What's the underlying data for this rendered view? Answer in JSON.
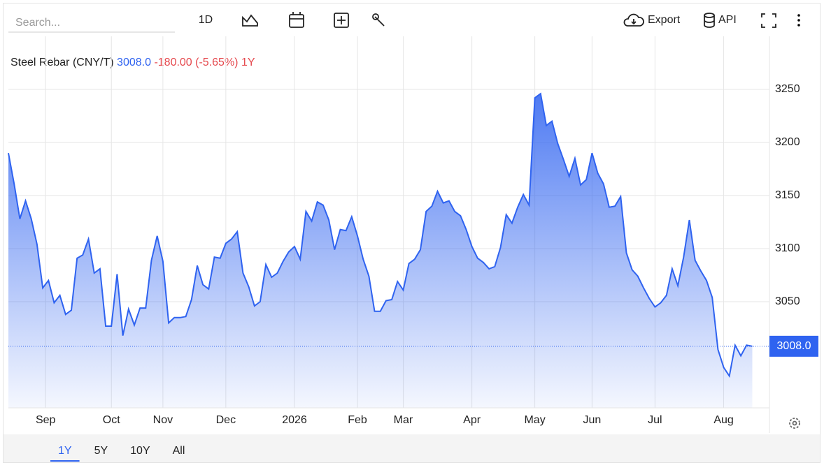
{
  "toolbar": {
    "search_placeholder": "Search...",
    "interval": "1D",
    "export": "Export",
    "api": "API"
  },
  "chart_data": {
    "type": "area",
    "title": "Steel Rebar (CNY/T)",
    "last": "3008.0",
    "change": "-180.00 (-5.65%)",
    "period": "1Y",
    "color": "#2f63f0",
    "values": [
      3190,
      3161,
      3128,
      3145,
      3128,
      3104,
      3063,
      3070,
      3049,
      3056,
      3038,
      3042,
      3091,
      3094,
      3109,
      3077,
      3081,
      3027,
      3027,
      3076,
      3018,
      3043,
      3028,
      3044,
      3044,
      3089,
      3112,
      3088,
      3030,
      3035,
      3035,
      3036,
      3052,
      3084,
      3066,
      3062,
      3092,
      3091,
      3105,
      3109,
      3116,
      3077,
      3064,
      3046,
      3050,
      3085,
      3073,
      3077,
      3088,
      3097,
      3102,
      3090,
      3135,
      3126,
      3144,
      3141,
      3127,
      3099,
      3118,
      3117,
      3130,
      3112,
      3090,
      3074,
      3041,
      3041,
      3051,
      3052,
      3069,
      3061,
      3086,
      3090,
      3099,
      3135,
      3140,
      3154,
      3143,
      3145,
      3135,
      3131,
      3118,
      3102,
      3091,
      3087,
      3081,
      3083,
      3101,
      3132,
      3124,
      3139,
      3151,
      3141,
      3242,
      3246,
      3216,
      3220,
      3199,
      3184,
      3168,
      3185,
      3160,
      3165,
      3190,
      3171,
      3161,
      3139,
      3140,
      3149,
      3096,
      3080,
      3074,
      3063,
      3053,
      3045,
      3049,
      3056,
      3081,
      3065,
      3092,
      3127,
      3089,
      3079,
      3070,
      3054,
      3005,
      2988,
      2980,
      3009,
      2999,
      3009,
      3008
    ],
    "xlim": [
      0,
      133
    ],
    "xticks": [
      {
        "value": 6.5,
        "label": "Sep"
      },
      {
        "value": 18,
        "label": "Oct"
      },
      {
        "value": 27,
        "label": "Nov"
      },
      {
        "value": 38,
        "label": "Dec"
      },
      {
        "value": 50,
        "label": "2026"
      },
      {
        "value": 61,
        "label": "Feb"
      },
      {
        "value": 69,
        "label": "Mar"
      },
      {
        "value": 81,
        "label": "Apr"
      },
      {
        "value": 92,
        "label": "May"
      },
      {
        "value": 102,
        "label": "Jun"
      },
      {
        "value": 113,
        "label": "Jul"
      },
      {
        "value": 125,
        "label": "Aug"
      }
    ],
    "ylim": [
      2950,
      3300
    ],
    "yticks": [
      3050,
      3100,
      3150,
      3200,
      3250
    ],
    "grid": true
  },
  "ranges": {
    "options": [
      "1Y",
      "5Y",
      "10Y",
      "All"
    ],
    "active": 0
  }
}
